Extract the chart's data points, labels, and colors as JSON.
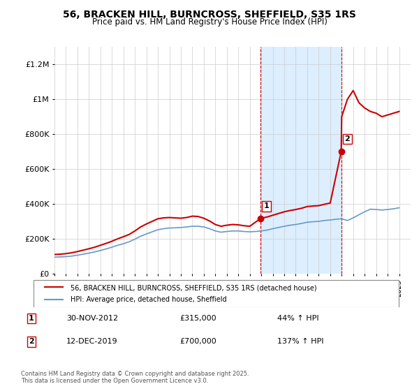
{
  "title": "56, BRACKEN HILL, BURNCROSS, SHEFFIELD, S35 1RS",
  "subtitle": "Price paid vs. HM Land Registry's House Price Index (HPI)",
  "ylabel_ticks": [
    0,
    200000,
    400000,
    600000,
    800000,
    1000000,
    1200000
  ],
  "ylabel_labels": [
    "£0",
    "£200K",
    "£400K",
    "£600K",
    "£800K",
    "£1M",
    "£1.2M"
  ],
  "ylim": [
    0,
    1300000
  ],
  "xlim_start": 1995.0,
  "xlim_end": 2026.0,
  "sale1_date": 2012.917,
  "sale1_price": 315000,
  "sale2_date": 2019.958,
  "sale2_price": 700000,
  "shade_color": "#ddeeff",
  "sale_color": "#cc0000",
  "hpi_color": "#6699cc",
  "legend1": "56, BRACKEN HILL, BURNCROSS, SHEFFIELD, S35 1RS (detached house)",
  "legend2": "HPI: Average price, detached house, Sheffield",
  "annotation1_date": "30-NOV-2012",
  "annotation1_price": "£315,000",
  "annotation1_hpi": "44% ↑ HPI",
  "annotation2_date": "12-DEC-2019",
  "annotation2_price": "£700,000",
  "annotation2_hpi": "137% ↑ HPI",
  "footer": "Contains HM Land Registry data © Crown copyright and database right 2025.\nThis data is licensed under the Open Government Licence v3.0.",
  "hpi_x": [
    1995.0,
    1995.5,
    1996.0,
    1996.5,
    1997.0,
    1997.5,
    1998.0,
    1998.5,
    1999.0,
    1999.5,
    2000.0,
    2000.5,
    2001.0,
    2001.5,
    2002.0,
    2002.5,
    2003.0,
    2003.5,
    2004.0,
    2004.5,
    2005.0,
    2005.5,
    2006.0,
    2006.5,
    2007.0,
    2007.5,
    2008.0,
    2008.5,
    2009.0,
    2009.5,
    2010.0,
    2010.5,
    2011.0,
    2011.5,
    2012.0,
    2012.5,
    2013.0,
    2013.5,
    2014.0,
    2014.5,
    2015.0,
    2015.5,
    2016.0,
    2016.5,
    2017.0,
    2017.5,
    2018.0,
    2018.5,
    2019.0,
    2019.5,
    2020.0,
    2020.5,
    2021.0,
    2021.5,
    2022.0,
    2022.5,
    2023.0,
    2023.5,
    2024.0,
    2024.5,
    2025.0
  ],
  "hpi_y": [
    95000,
    96000,
    98000,
    101000,
    106000,
    112000,
    118000,
    125000,
    133000,
    142000,
    152000,
    163000,
    172000,
    183000,
    198000,
    215000,
    228000,
    240000,
    252000,
    258000,
    262000,
    263000,
    265000,
    268000,
    272000,
    272000,
    268000,
    258000,
    245000,
    238000,
    242000,
    245000,
    245000,
    242000,
    240000,
    242000,
    245000,
    250000,
    258000,
    265000,
    272000,
    278000,
    282000,
    288000,
    295000,
    298000,
    300000,
    305000,
    308000,
    312000,
    315000,
    305000,
    320000,
    338000,
    355000,
    370000,
    368000,
    365000,
    368000,
    372000,
    378000
  ],
  "red_x": [
    1995.0,
    1995.5,
    1996.0,
    1996.5,
    1997.0,
    1997.5,
    1998.0,
    1998.5,
    1999.0,
    1999.5,
    2000.0,
    2000.5,
    2001.0,
    2001.5,
    2002.0,
    2002.5,
    2003.0,
    2003.5,
    2004.0,
    2004.5,
    2005.0,
    2005.5,
    2006.0,
    2006.5,
    2007.0,
    2007.5,
    2008.0,
    2008.5,
    2009.0,
    2009.5,
    2010.0,
    2010.5,
    2011.0,
    2011.5,
    2012.0,
    2012.917,
    2012.917,
    2013.0,
    2013.5,
    2014.0,
    2014.5,
    2015.0,
    2015.5,
    2016.0,
    2016.5,
    2017.0,
    2017.5,
    2018.0,
    2018.5,
    2019.0,
    2019.958,
    2019.958,
    2020.0,
    2020.5,
    2021.0,
    2021.5,
    2022.0,
    2022.5,
    2023.0,
    2023.5,
    2024.0,
    2024.5,
    2025.0
  ],
  "red_y": [
    110000,
    112000,
    115000,
    120000,
    127000,
    135000,
    143000,
    152000,
    163000,
    174000,
    186000,
    200000,
    212000,
    225000,
    245000,
    268000,
    285000,
    300000,
    315000,
    320000,
    322000,
    320000,
    318000,
    322000,
    330000,
    328000,
    318000,
    302000,
    282000,
    272000,
    278000,
    282000,
    280000,
    275000,
    272000,
    315000,
    315000,
    318000,
    325000,
    335000,
    345000,
    355000,
    362000,
    368000,
    375000,
    385000,
    388000,
    390000,
    398000,
    405000,
    700000,
    700000,
    900000,
    1000000,
    1050000,
    980000,
    950000,
    930000,
    920000,
    900000,
    910000,
    920000,
    930000
  ]
}
